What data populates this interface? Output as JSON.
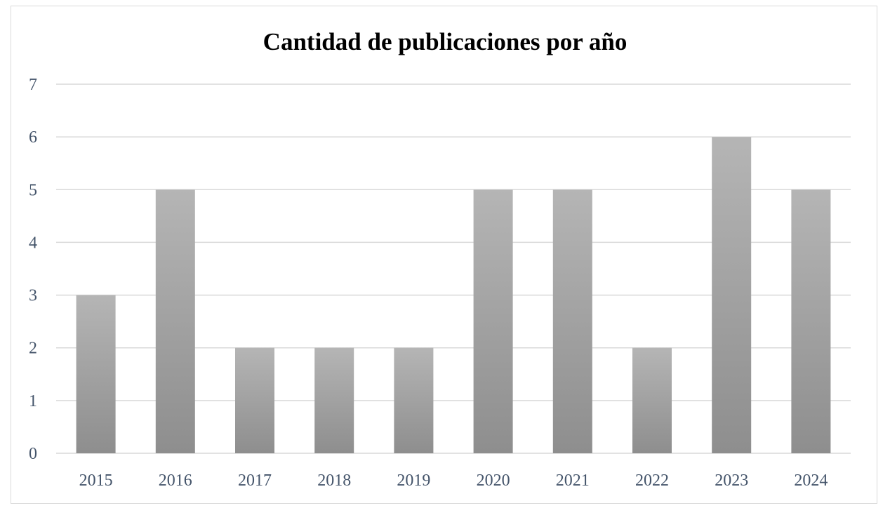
{
  "chart_data": {
    "type": "bar",
    "title": "Cantidad de publicaciones por año",
    "xlabel": "",
    "ylabel": "",
    "categories": [
      "2015",
      "2016",
      "2017",
      "2018",
      "2019",
      "2020",
      "2021",
      "2022",
      "2023",
      "2024"
    ],
    "values": [
      3,
      5,
      2,
      2,
      2,
      5,
      5,
      2,
      6,
      5
    ],
    "ylim": [
      0,
      7
    ],
    "yticks": [
      "0",
      "1",
      "2",
      "3",
      "4",
      "5",
      "6",
      "7"
    ],
    "grid": true,
    "legend": "none",
    "colors": {
      "bar_top": "#b5b5b5",
      "bar_bottom": "#8e8e8e",
      "gridline": "#d9d9d9",
      "tick_text": "#44546a",
      "title_text": "#000000"
    }
  }
}
